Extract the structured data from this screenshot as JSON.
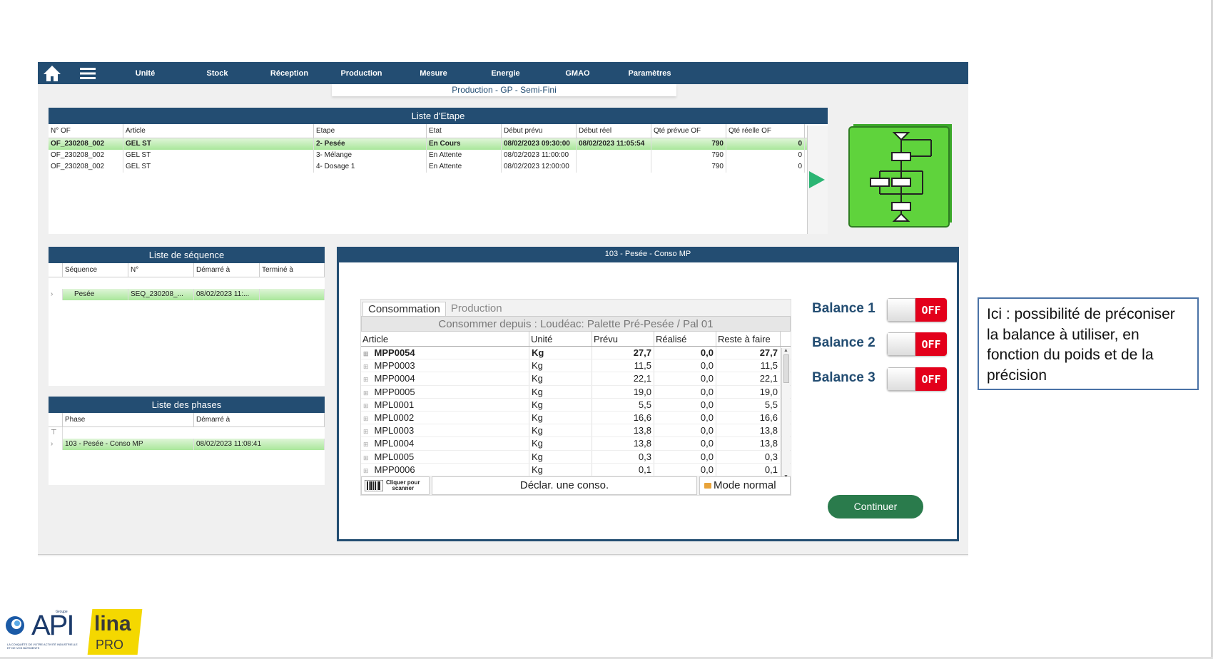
{
  "nav": {
    "items": [
      "Unité",
      "Stock",
      "Réception",
      "Production",
      "Mesure",
      "Energie",
      "GMAO",
      "Paramètres"
    ],
    "subtitle": "Production - GP - Semi-Fini"
  },
  "etape": {
    "title": "Liste d'Etape",
    "columns": [
      "N° OF",
      "Article",
      "Etape",
      "Etat",
      "Début prévu",
      "Début réel",
      "Qté prévue OF",
      "Qté réelle OF"
    ],
    "rows": [
      [
        "OF_230208_002",
        "GEL ST",
        "2- Pesée",
        "En Cours",
        "08/02/2023 09:30:00",
        "08/02/2023 11:05:54",
        "790",
        "0"
      ],
      [
        "OF_230208_002",
        "GEL ST",
        "3- Mélange",
        "En Attente",
        "08/02/2023 11:00:00",
        "",
        "790",
        "0"
      ],
      [
        "OF_230208_002",
        "GEL ST",
        "4- Dosage 1",
        "En Attente",
        "08/02/2023 12:00:00",
        "",
        "790",
        "0"
      ]
    ]
  },
  "sequence": {
    "title": "Liste de séquence",
    "columns": [
      "Séquence",
      "N°",
      "Démarré à",
      "Terminé à"
    ],
    "rows": [
      [
        "Pesée",
        "SEQ_230208_...",
        "08/02/2023 11:...",
        ""
      ]
    ]
  },
  "phases": {
    "title": "Liste des phases",
    "columns": [
      "Phase",
      "Démarré à"
    ],
    "rows": [
      [
        "103 - Pesée - Conso MP",
        "08/02/2023 11:08:41"
      ]
    ]
  },
  "pesee": {
    "title": "103 - Pesée - Conso MP",
    "tabs": [
      "Consommation",
      "Production"
    ],
    "consommer_depuis": "Consommer depuis : Loudéac: Palette Pré-Pesée / Pal 01",
    "columns": [
      "Article",
      "Unité",
      "Prévu",
      "Réalisé",
      "Reste à faire"
    ],
    "rows": [
      [
        "MPP0054",
        "Kg",
        "27,7",
        "0,0",
        "27,7"
      ],
      [
        "MPP0003",
        "Kg",
        "11,5",
        "0,0",
        "11,5"
      ],
      [
        "MPP0004",
        "Kg",
        "22,1",
        "0,0",
        "22,1"
      ],
      [
        "MPP0005",
        "Kg",
        "19,0",
        "0,0",
        "19,0"
      ],
      [
        "MPL0001",
        "Kg",
        "5,5",
        "0,0",
        "5,5"
      ],
      [
        "MPL0002",
        "Kg",
        "16,6",
        "0,0",
        "16,6"
      ],
      [
        "MPL0003",
        "Kg",
        "13,8",
        "0,0",
        "13,8"
      ],
      [
        "MPL0004",
        "Kg",
        "13,8",
        "0,0",
        "13,8"
      ],
      [
        "MPL0005",
        "Kg",
        "0,3",
        "0,0",
        "0,3"
      ],
      [
        "MPP0006",
        "Kg",
        "0,1",
        "0,0",
        "0,1"
      ]
    ],
    "scan_label_1": "Cliquer pour",
    "scan_label_2": "scanner",
    "declar_label": "Déclar. une conso.",
    "mode_label": "Mode normal",
    "balances": [
      {
        "label": "Balance 1",
        "state": "OFF"
      },
      {
        "label": "Balance 2",
        "state": "OFF"
      },
      {
        "label": "Balance 3",
        "state": "OFF"
      }
    ],
    "continue_label": "Continuer"
  },
  "callout": {
    "text": "Ici : possibilité de préconiser la balance à utiliser, en fonction du poids et de la précision"
  },
  "logos": {
    "api_text": "API",
    "api_top": "Groupe",
    "api_tagline": "LA CONQUÊTE DE VOTRE ACTIVITÉ INDUSTRIELLE ET DE VOS BÂTIMENTS",
    "lina_text": "lina",
    "lina_sub": "PRO"
  },
  "colors": {
    "primary": "#234d72",
    "selected_row": "#a9e79a",
    "off_red": "#e3001b",
    "continue_green": "#2a7b4c",
    "workflow_green": "#5fd33c"
  }
}
